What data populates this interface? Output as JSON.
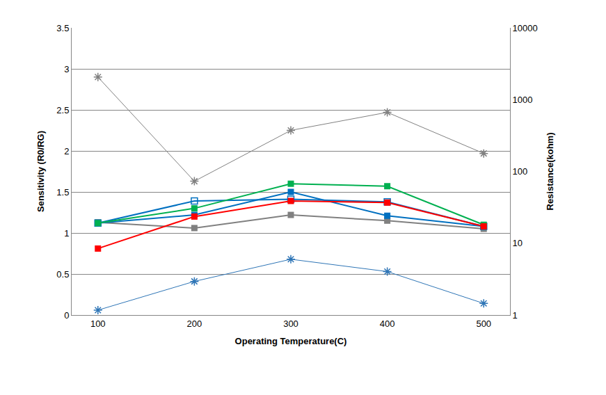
{
  "chart_data": {
    "type": "line",
    "x_label": "Operating Temperature(C)",
    "y_label": "Sensitivity (R0/RG)",
    "y2_label": "Resistance(kohm)",
    "categories": [
      "100",
      "200",
      "300",
      "400",
      "500"
    ],
    "ylim": [
      0,
      3.5
    ],
    "yticks": [
      0,
      0.5,
      1,
      1.5,
      2,
      2.5,
      3,
      3.5
    ],
    "y2lim": [
      1,
      10000
    ],
    "y2ticks": [
      1,
      10,
      100,
      1000,
      10000
    ],
    "log": "y2",
    "grid": true,
    "series": [
      {
        "color": "#808080",
        "marker": "asterisk",
        "axis": "y2",
        "values": [
          2060,
          73,
          373,
          665,
          178
        ]
      },
      {
        "color": "#2e75b6",
        "marker": "asterisk",
        "axis": "y2",
        "values": [
          1.17,
          2.94,
          5.98,
          4.03,
          1.45
        ]
      },
      {
        "color": "#808080",
        "marker": "square",
        "values": [
          1.13,
          1.06,
          1.22,
          1.15,
          1.05
        ]
      },
      {
        "color": "#0070c0",
        "marker": "square-open",
        "values": [
          1.12,
          1.39,
          1.41,
          1.38,
          1.08
        ]
      },
      {
        "color": "#0070c0",
        "marker": "square",
        "values": [
          1.12,
          1.22,
          1.5,
          1.21,
          1.08
        ]
      },
      {
        "color": "#00b050",
        "marker": "square",
        "values": [
          1.12,
          1.3,
          1.6,
          1.57,
          1.1
        ]
      },
      {
        "color": "#ff0000",
        "marker": "square",
        "values": [
          0.81,
          1.2,
          1.39,
          1.37,
          1.08
        ]
      }
    ]
  }
}
